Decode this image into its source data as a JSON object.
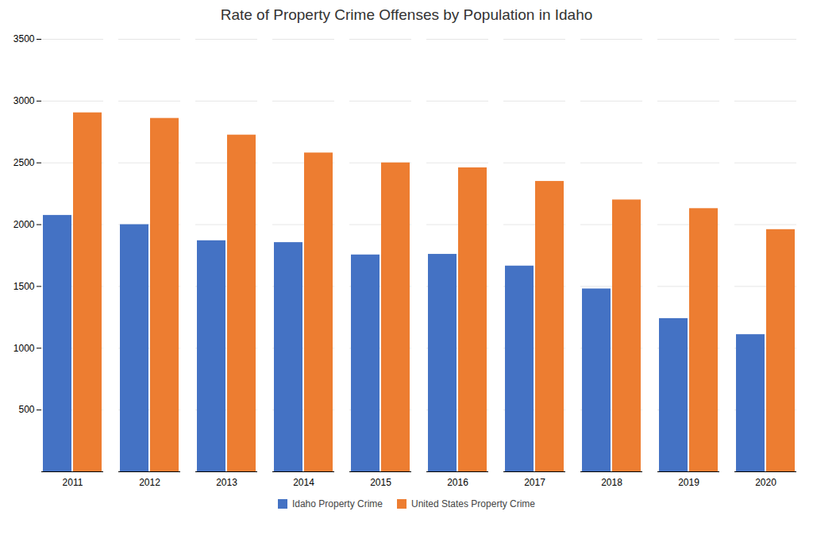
{
  "chart_data": {
    "type": "bar",
    "title": "Rate of Property Crime Offenses by Population in Idaho",
    "categories": [
      "2011",
      "2012",
      "2013",
      "2014",
      "2015",
      "2016",
      "2017",
      "2018",
      "2019",
      "2020"
    ],
    "series": [
      {
        "name": "Idaho Property Crime",
        "color": "#4472C4",
        "values": [
          2075,
          2000,
          1870,
          1855,
          1755,
          1760,
          1665,
          1480,
          1240,
          1110
        ]
      },
      {
        "name": "United States Property Crime",
        "color": "#ED7D31",
        "values": [
          2905,
          2860,
          2725,
          2580,
          2500,
          2460,
          2350,
          2200,
          2130,
          1960
        ]
      }
    ],
    "ylim": [
      0,
      3500
    ],
    "yticks": [
      500,
      1000,
      1500,
      2000,
      2500,
      3000,
      3500
    ],
    "grid": true,
    "legend": "bottom"
  }
}
